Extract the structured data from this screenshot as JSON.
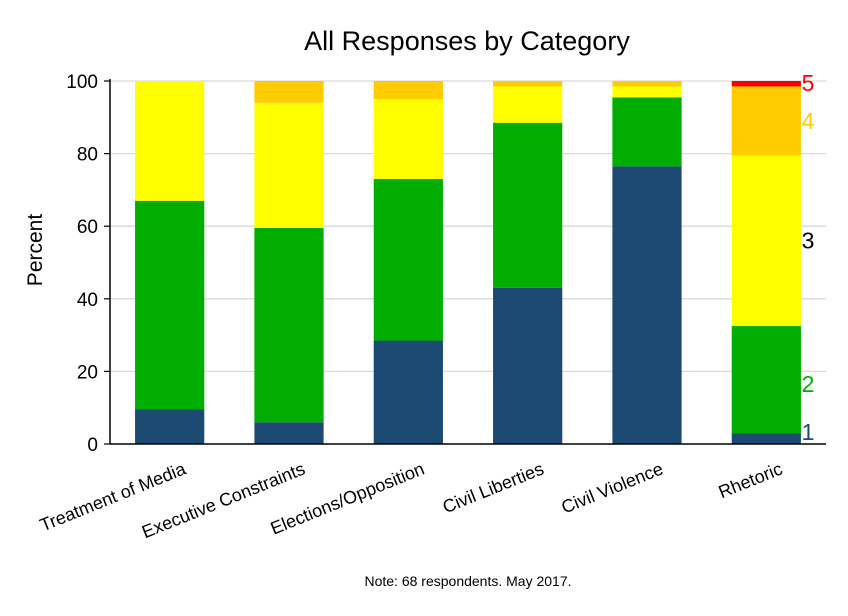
{
  "chart_data": {
    "type": "bar",
    "stacked": true,
    "title": "All Responses by Category",
    "ylabel": "Percent",
    "xlabel": "",
    "ylim": [
      0,
      100
    ],
    "yticks": [
      "0",
      "20",
      "40",
      "60",
      "80",
      "100"
    ],
    "grid": true,
    "categories": [
      "Treatment of Media",
      "Executive Constraints",
      "Elections/Opposition",
      "Civil Liberties",
      "Civil Violence",
      "Rhetoric"
    ],
    "series": [
      {
        "name": "1",
        "color": "#1c4a72",
        "values": [
          9.5,
          6,
          28.5,
          43,
          76.5,
          3
        ]
      },
      {
        "name": "2",
        "color": "#00ad00",
        "values": [
          57.5,
          53.5,
          44.5,
          45.5,
          19,
          29.5
        ]
      },
      {
        "name": "3",
        "color": "#ffff00",
        "values": [
          33,
          34.5,
          22,
          10,
          3,
          47
        ]
      },
      {
        "name": "4",
        "color": "#ffcc00",
        "values": [
          0,
          6,
          5,
          1.5,
          1.5,
          19
        ]
      },
      {
        "name": "5",
        "color": "#ff0000",
        "values": [
          0,
          0,
          0,
          0,
          0,
          1.5
        ]
      }
    ],
    "legend_position": "right, aligned with the Rhetoric bar segments",
    "note": "Note: 68 respondents. May 2017."
  }
}
